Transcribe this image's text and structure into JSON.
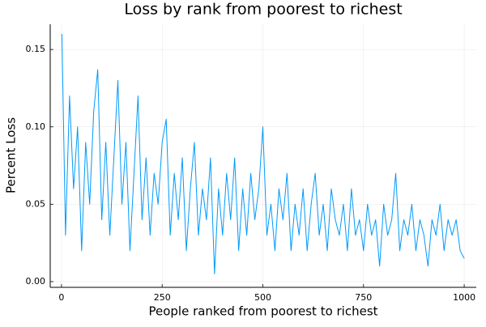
{
  "chart_data": {
    "type": "line",
    "title": "Loss by rank from poorest to richest",
    "xlabel": "People ranked from poorest to richest",
    "ylabel": "Percent Loss",
    "grid": true,
    "xlim": [
      -28,
      1030
    ],
    "ylim": [
      -0.0037,
      0.1663
    ],
    "xticks": [
      0,
      250,
      500,
      750,
      1000
    ],
    "yticks": [
      {
        "value": 0,
        "label": "0.00"
      },
      {
        "value": 0.05,
        "label": "0.05"
      },
      {
        "value": 0.1,
        "label": "0.10"
      },
      {
        "value": 0.15,
        "label": "0.15"
      }
    ],
    "x": [
      1,
      10,
      20,
      30,
      40,
      50,
      60,
      70,
      80,
      90,
      100,
      110,
      120,
      130,
      140,
      150,
      160,
      170,
      180,
      190,
      200,
      210,
      220,
      230,
      240,
      250,
      260,
      270,
      280,
      290,
      300,
      310,
      320,
      330,
      340,
      350,
      360,
      370,
      380,
      390,
      400,
      410,
      420,
      430,
      440,
      450,
      460,
      470,
      480,
      490,
      500,
      510,
      520,
      530,
      540,
      550,
      560,
      570,
      580,
      590,
      600,
      610,
      620,
      630,
      640,
      650,
      660,
      670,
      680,
      690,
      700,
      710,
      720,
      730,
      740,
      750,
      760,
      770,
      780,
      790,
      800,
      810,
      820,
      830,
      840,
      850,
      860,
      870,
      880,
      890,
      900,
      910,
      920,
      930,
      940,
      950,
      960,
      970,
      980,
      990,
      1000
    ],
    "series": [
      {
        "color": "#009af9",
        "values": [
          0.16,
          0.03,
          0.12,
          0.06,
          0.1,
          0.02,
          0.09,
          0.05,
          0.11,
          0.137,
          0.04,
          0.09,
          0.03,
          0.08,
          0.13,
          0.05,
          0.09,
          0.02,
          0.07,
          0.12,
          0.04,
          0.08,
          0.03,
          0.07,
          0.05,
          0.09,
          0.105,
          0.03,
          0.07,
          0.04,
          0.08,
          0.02,
          0.06,
          0.09,
          0.03,
          0.06,
          0.04,
          0.08,
          0.005,
          0.06,
          0.03,
          0.07,
          0.04,
          0.08,
          0.02,
          0.06,
          0.03,
          0.07,
          0.04,
          0.06,
          0.1,
          0.03,
          0.05,
          0.02,
          0.06,
          0.04,
          0.07,
          0.02,
          0.05,
          0.03,
          0.06,
          0.02,
          0.05,
          0.07,
          0.03,
          0.05,
          0.02,
          0.06,
          0.04,
          0.03,
          0.05,
          0.02,
          0.06,
          0.03,
          0.04,
          0.02,
          0.05,
          0.03,
          0.04,
          0.01,
          0.05,
          0.03,
          0.04,
          0.07,
          0.02,
          0.04,
          0.03,
          0.05,
          0.02,
          0.04,
          0.03,
          0.01,
          0.04,
          0.03,
          0.05,
          0.02,
          0.04,
          0.03,
          0.04,
          0.02,
          0.015
        ]
      }
    ]
  }
}
